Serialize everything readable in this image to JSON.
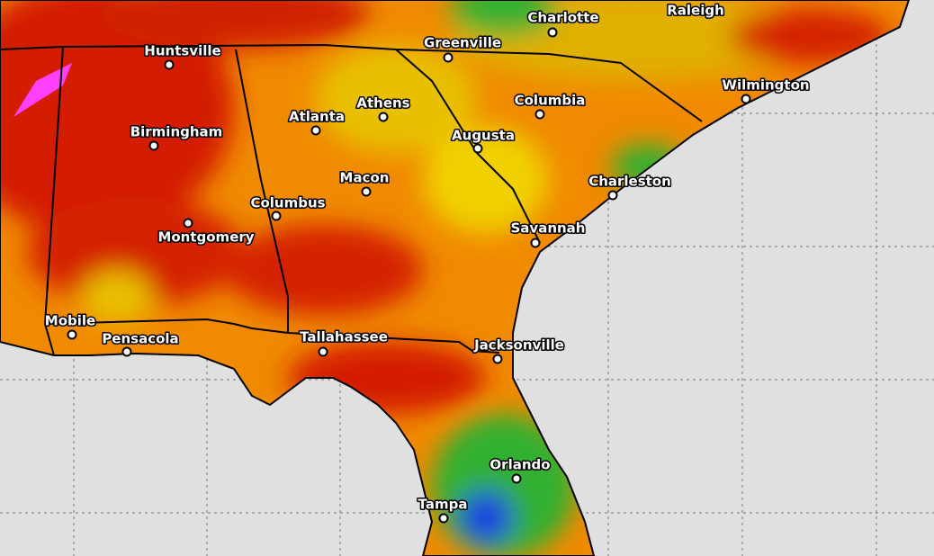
{
  "cities": [
    {
      "name": "Raleigh"
    },
    {
      "name": "Charlotte"
    },
    {
      "name": "Greenville"
    },
    {
      "name": "Wilmington"
    },
    {
      "name": "Huntsville"
    },
    {
      "name": "Athens"
    },
    {
      "name": "Columbia"
    },
    {
      "name": "Atlanta"
    },
    {
      "name": "Birmingham"
    },
    {
      "name": "Augusta"
    },
    {
      "name": "Charleston"
    },
    {
      "name": "Macon"
    },
    {
      "name": "Columbus"
    },
    {
      "name": "Montgomery"
    },
    {
      "name": "Savannah"
    },
    {
      "name": "Mobile"
    },
    {
      "name": "Pensacola"
    },
    {
      "name": "Tallahassee"
    },
    {
      "name": "Jacksonville"
    },
    {
      "name": "Orlando"
    },
    {
      "name": "Tampa"
    }
  ]
}
